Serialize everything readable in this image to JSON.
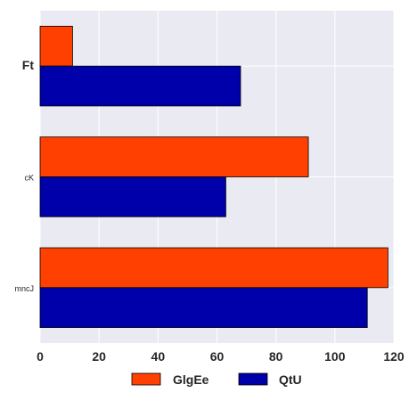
{
  "chart_data": {
    "type": "bar",
    "orientation": "horizontal",
    "categories": [
      "Ft",
      "cK",
      "mncJ"
    ],
    "series": [
      {
        "name": "GlgEe",
        "color": "#ff4000",
        "values": [
          11,
          91,
          118
        ]
      },
      {
        "name": "QtU",
        "color": "#0000aa",
        "values": [
          68,
          63,
          111
        ]
      }
    ],
    "xlim": [
      0,
      120
    ],
    "xticks": [
      "0",
      "20",
      "40",
      "60",
      "80",
      "100",
      "120"
    ],
    "grid": true,
    "legend_position": "bottom-center",
    "title": "",
    "xlabel": "",
    "ylabel": ""
  }
}
